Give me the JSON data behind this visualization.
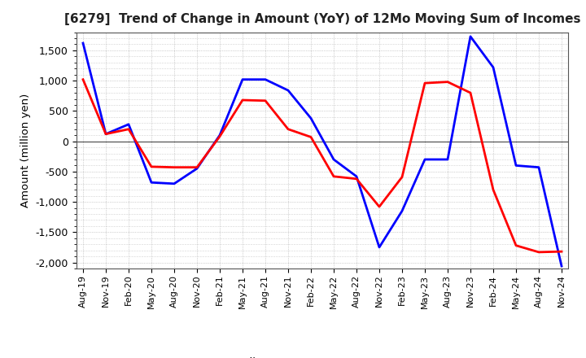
{
  "title": "[6279]  Trend of Change in Amount (YoY) of 12Mo Moving Sum of Incomes",
  "ylabel": "Amount (million yen)",
  "ylim": [
    -2100,
    1800
  ],
  "yticks": [
    1500,
    1000,
    500,
    0,
    -500,
    -1000,
    -1500,
    -2000
  ],
  "background_color": "#ffffff",
  "plot_bg_color": "#ffffff",
  "grid_color": "#aaaaaa",
  "ordinary_income_color": "#0000ff",
  "net_income_color": "#ff0000",
  "line_width": 2.0,
  "labels": [
    "Aug-19",
    "Nov-19",
    "Feb-20",
    "May-20",
    "Aug-20",
    "Nov-20",
    "Feb-21",
    "May-21",
    "Aug-21",
    "Nov-21",
    "Feb-22",
    "May-22",
    "Aug-22",
    "Nov-22",
    "Feb-23",
    "May-23",
    "Aug-23",
    "Nov-23",
    "Feb-24",
    "May-24",
    "Aug-24",
    "Nov-24"
  ],
  "ordinary_income": [
    1620,
    120,
    280,
    -680,
    -700,
    -450,
    100,
    1020,
    1020,
    840,
    380,
    -300,
    -580,
    -1750,
    -1150,
    -300,
    -300,
    1730,
    1220,
    -400,
    -430,
    -2060
  ],
  "net_income": [
    1020,
    120,
    200,
    -420,
    -430,
    -430,
    80,
    680,
    670,
    200,
    70,
    -580,
    -620,
    -1080,
    -590,
    960,
    980,
    800,
    -800,
    -1720,
    -1830,
    -1820
  ]
}
